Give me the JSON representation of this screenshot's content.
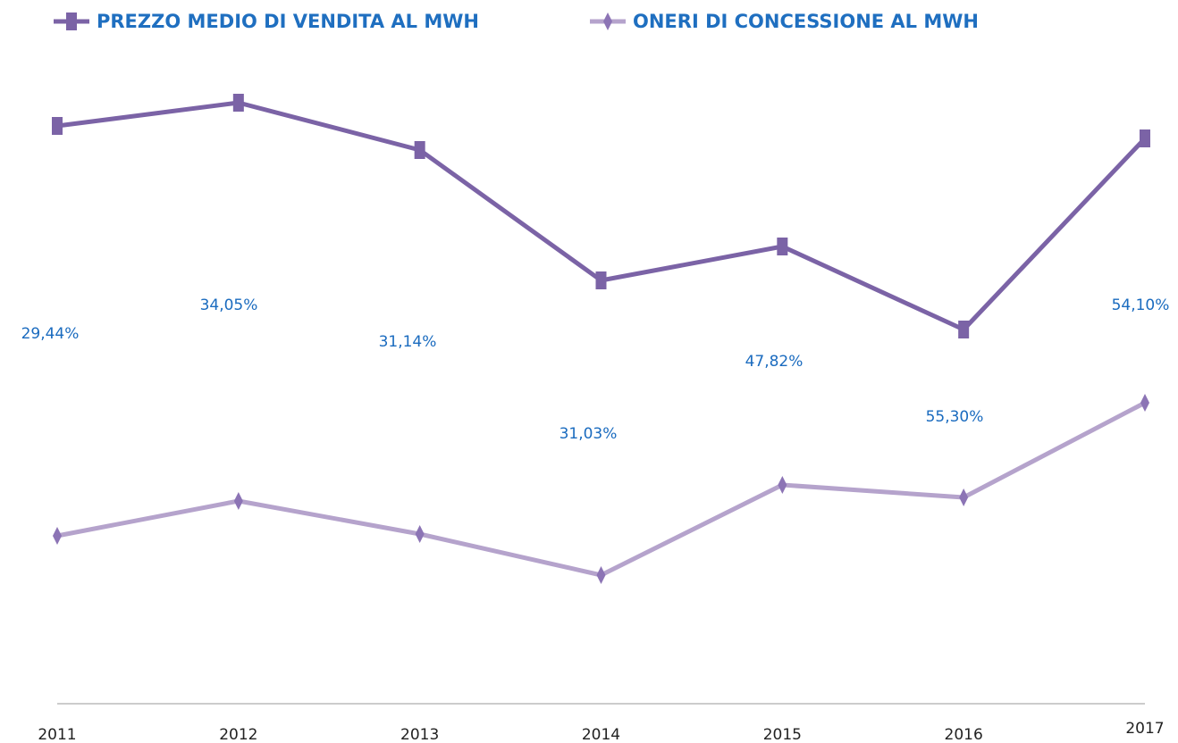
{
  "chart_data": {
    "type": "line",
    "categories": [
      "2011",
      "2012",
      "2013",
      "2014",
      "2015",
      "2016",
      "2017"
    ],
    "series": [
      {
        "name": "PREZZO MEDIO DI VENDITA AL MWH",
        "color": "#7b63a6",
        "marker": "square",
        "values": [
          64.7,
          67.3,
          62.0,
          47.4,
          51.2,
          41.9,
          63.3
        ]
      },
      {
        "name": "ONERI DI CONCESSIONE AL MWH",
        "color": "#b5a3cc",
        "marker": "diamond",
        "values": [
          18.8,
          22.7,
          19.0,
          14.4,
          24.5,
          23.1,
          33.7
        ]
      }
    ],
    "annotations": [
      "29,44%",
      "34,05%",
      "31,14%",
      "31,03%",
      "47,82%",
      "55,30%",
      "54,10%"
    ],
    "ylim": [
      0,
      70
    ],
    "legend": "top",
    "grid": false
  }
}
